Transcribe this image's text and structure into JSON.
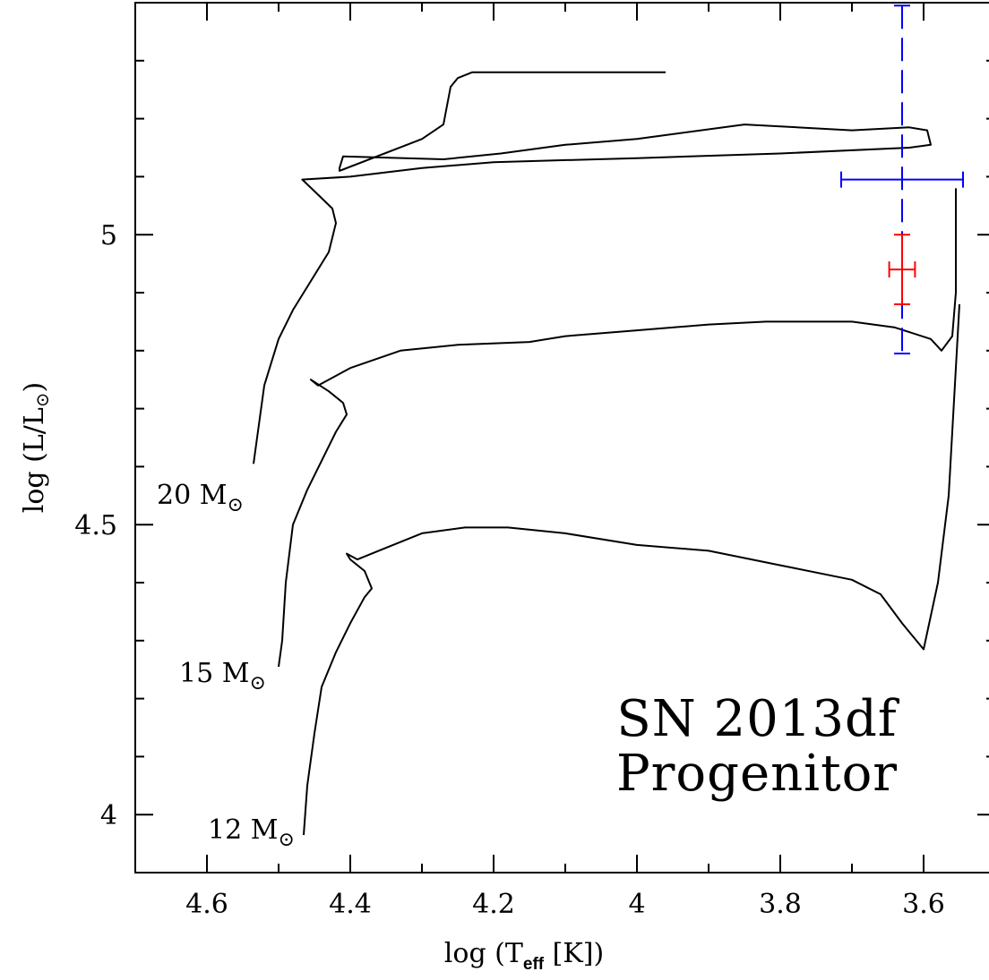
{
  "chart_data": {
    "type": "line",
    "xlabel": "log (T",
    "xlabel_sub": "eff",
    "xlabel_tail": " [K])",
    "ylabel": "log (L/L",
    "ylabel_tail": ")",
    "xlim": [
      4.7,
      3.5
    ],
    "ylim": [
      3.9,
      5.4
    ],
    "x_reversed": true,
    "x_ticks": [
      "4.6",
      "4.4",
      "4.2",
      "4",
      "3.8",
      "3.6"
    ],
    "x_tick_values": [
      4.6,
      4.4,
      4.2,
      4.0,
      3.8,
      3.6
    ],
    "y_ticks": [
      "4",
      "4.5",
      "5"
    ],
    "y_tick_values": [
      4.0,
      4.5,
      5.0
    ],
    "annotation": [
      "SN 2013df",
      "Progenitor"
    ],
    "series": [
      {
        "name": "20 M☉",
        "label_mass": "20 M",
        "color": "#000000",
        "points": [
          [
            4.535,
            4.605
          ],
          [
            4.53,
            4.65
          ],
          [
            4.52,
            4.74
          ],
          [
            4.5,
            4.82
          ],
          [
            4.48,
            4.87
          ],
          [
            4.46,
            4.91
          ],
          [
            4.43,
            4.97
          ],
          [
            4.42,
            5.02
          ],
          [
            4.425,
            5.045
          ],
          [
            4.45,
            5.075
          ],
          [
            4.467,
            5.095
          ],
          [
            4.4,
            5.1
          ],
          [
            4.3,
            5.115
          ],
          [
            4.2,
            5.125
          ],
          [
            4.0,
            5.132
          ],
          [
            3.8,
            5.14
          ],
          [
            3.62,
            5.15
          ],
          [
            3.59,
            5.155
          ],
          [
            3.595,
            5.18
          ],
          [
            3.62,
            5.185
          ],
          [
            3.7,
            5.18
          ],
          [
            3.85,
            5.19
          ],
          [
            4.0,
            5.165
          ],
          [
            4.1,
            5.155
          ],
          [
            4.19,
            5.14
          ],
          [
            4.27,
            5.13
          ],
          [
            4.41,
            5.135
          ],
          [
            4.415,
            5.115
          ],
          [
            4.415,
            5.11
          ],
          [
            4.3,
            5.165
          ],
          [
            4.27,
            5.19
          ],
          [
            4.26,
            5.255
          ],
          [
            4.25,
            5.27
          ],
          [
            4.23,
            5.28
          ],
          [
            4.1,
            5.28
          ],
          [
            3.96,
            5.28
          ]
        ]
      },
      {
        "name": "15 M☉",
        "label_mass": "15 M",
        "color": "#000000",
        "points": [
          [
            4.5,
            4.255
          ],
          [
            4.495,
            4.3
          ],
          [
            4.49,
            4.4
          ],
          [
            4.48,
            4.5
          ],
          [
            4.46,
            4.56
          ],
          [
            4.44,
            4.61
          ],
          [
            4.42,
            4.66
          ],
          [
            4.405,
            4.69
          ],
          [
            4.41,
            4.71
          ],
          [
            4.43,
            4.73
          ],
          [
            4.455,
            4.75
          ],
          [
            4.445,
            4.74
          ],
          [
            4.4,
            4.77
          ],
          [
            4.33,
            4.8
          ],
          [
            4.25,
            4.81
          ],
          [
            4.15,
            4.815
          ],
          [
            4.1,
            4.825
          ],
          [
            4.0,
            4.835
          ],
          [
            3.9,
            4.845
          ],
          [
            3.82,
            4.85
          ],
          [
            3.7,
            4.85
          ],
          [
            3.64,
            4.84
          ],
          [
            3.59,
            4.82
          ],
          [
            3.575,
            4.8
          ],
          [
            3.56,
            4.825
          ],
          [
            3.555,
            4.9
          ],
          [
            3.555,
            5.05
          ],
          [
            3.555,
            5.08
          ]
        ]
      },
      {
        "name": "12 M☉",
        "label_mass": "12 M",
        "color": "#000000",
        "points": [
          [
            4.465,
            3.965
          ],
          [
            4.46,
            4.05
          ],
          [
            4.45,
            4.14
          ],
          [
            4.44,
            4.22
          ],
          [
            4.42,
            4.28
          ],
          [
            4.4,
            4.33
          ],
          [
            4.38,
            4.375
          ],
          [
            4.37,
            4.39
          ],
          [
            4.38,
            4.42
          ],
          [
            4.4,
            4.44
          ],
          [
            4.405,
            4.45
          ],
          [
            4.39,
            4.44
          ],
          [
            4.35,
            4.46
          ],
          [
            4.3,
            4.485
          ],
          [
            4.24,
            4.495
          ],
          [
            4.18,
            4.495
          ],
          [
            4.1,
            4.485
          ],
          [
            4.0,
            4.465
          ],
          [
            3.9,
            4.455
          ],
          [
            3.8,
            4.43
          ],
          [
            3.7,
            4.405
          ],
          [
            3.66,
            4.38
          ],
          [
            3.63,
            4.33
          ],
          [
            3.6,
            4.285
          ],
          [
            3.58,
            4.4
          ],
          [
            3.565,
            4.55
          ],
          [
            3.55,
            4.88
          ]
        ]
      }
    ],
    "error_bars": [
      {
        "color": "#0000ff",
        "x": 3.63,
        "y": 5.095,
        "x_err": 0.085,
        "y_err": 0.3,
        "vertical_style": "dashed"
      },
      {
        "color": "#ff0000",
        "x": 3.63,
        "y": 4.94,
        "x_err": 0.018,
        "y_err": 0.06,
        "vertical_style": "solid"
      }
    ],
    "grid": false,
    "legend": "none"
  }
}
